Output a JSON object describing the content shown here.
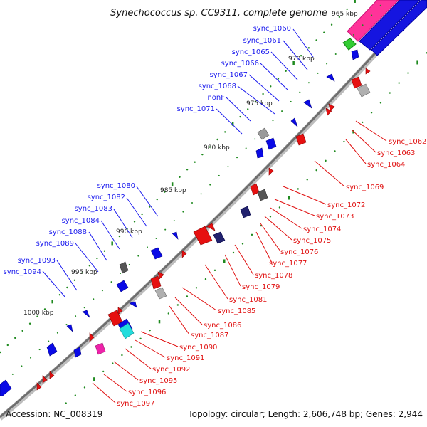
{
  "title": "Synechococcus sp. CC9311, complete genome",
  "footer": {
    "accession": "Accession: NC_008319",
    "summary": "Topology: circular; Length: 2,606,748 bp; Genes: 2,944"
  },
  "kbp_labels": [
    "965 kbp",
    "970 kbp",
    "975 kbp",
    "980 kbp",
    "985 kbp",
    "990 kbp",
    "995 kbp",
    "1000 kbp"
  ],
  "genes_forward": [
    "sync_1060",
    "sync_1061",
    "sync_1065",
    "sync_1066",
    "sync_1067",
    "sync_1068",
    "nonF",
    "sync_1071",
    "sync_1080",
    "sync_1082",
    "sync_1083",
    "sync_1084",
    "sync_1088",
    "sync_1089",
    "sync_1093",
    "sync_1094"
  ],
  "genes_reverse": [
    "sync_1062",
    "sync_1063",
    "sync_1064",
    "sync_1069",
    "sync_1072",
    "sync_1073",
    "sync_1074",
    "sync_1075",
    "sync_1076",
    "sync_1077",
    "sync_1078",
    "sync_1079",
    "sync_1081",
    "sync_1085",
    "sync_1086",
    "sync_1087",
    "sync_1090",
    "sync_1091",
    "sync_1092",
    "sync_1095",
    "sync_1096",
    "sync_1097"
  ],
  "colors": {
    "forward_cds": "#0a0ae6",
    "reverse_cds": "#e61010",
    "backbone": "#7a7a7a",
    "tick": "#1f8a1f",
    "rrna": "#ff3399",
    "trna": "#22cc22",
    "misc_gray": "#9a9a9a",
    "dark_navy": "#22226e",
    "cyan": "#22dddd",
    "magenta": "#ee22aa"
  }
}
